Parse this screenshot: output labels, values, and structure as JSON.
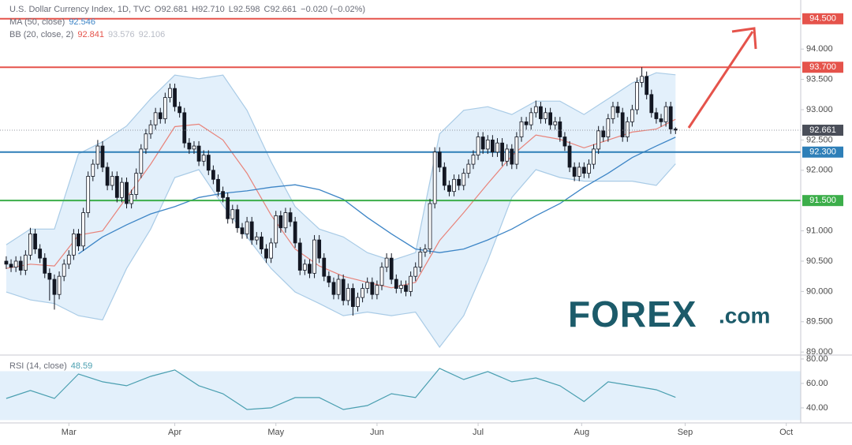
{
  "chart_data": [
    {
      "type": "candlestick",
      "title": "U.S. Dollar Currency Index, 1D, TVC",
      "ohlc_labels": [
        "O",
        "H",
        "L",
        "C"
      ],
      "last_labels": [
        "92.681",
        "92.710",
        "92.598",
        "92.661"
      ],
      "change": "−0.020 (−0.02%)",
      "up_color": "#ffffff",
      "down_color": "#131722",
      "ohlc": [
        [
          90.5,
          90.58,
          90.37,
          90.45
        ],
        [
          90.45,
          90.53,
          90.32,
          90.4
        ],
        [
          90.4,
          90.58,
          90.32,
          90.5
        ],
        [
          90.5,
          90.58,
          90.27,
          90.35
        ],
        [
          90.35,
          90.68,
          90.27,
          90.6
        ],
        [
          90.6,
          91.05,
          90.52,
          90.95
        ],
        [
          90.95,
          91.03,
          90.62,
          90.7
        ],
        [
          90.7,
          90.78,
          90.47,
          90.55
        ],
        [
          90.55,
          90.63,
          90.22,
          90.3
        ],
        [
          90.3,
          90.38,
          89.85,
          90.2
        ],
        [
          90.2,
          90.28,
          89.7,
          89.95
        ],
        [
          89.95,
          90.33,
          89.87,
          90.25
        ],
        [
          90.25,
          90.53,
          90.17,
          90.45
        ],
        [
          90.45,
          90.68,
          90.37,
          90.6
        ],
        [
          90.6,
          91.03,
          90.52,
          90.95
        ],
        [
          90.95,
          91.03,
          90.67,
          90.75
        ],
        [
          90.75,
          91.38,
          90.67,
          91.3
        ],
        [
          91.3,
          91.98,
          91.22,
          91.9
        ],
        [
          91.9,
          92.18,
          91.82,
          92.1
        ],
        [
          92.1,
          92.5,
          92.02,
          92.4
        ],
        [
          92.4,
          92.48,
          91.97,
          92.05
        ],
        [
          92.05,
          92.13,
          91.67,
          91.75
        ],
        [
          91.75,
          91.98,
          91.67,
          91.9
        ],
        [
          91.9,
          91.98,
          91.47,
          91.55
        ],
        [
          91.55,
          91.88,
          91.47,
          91.8
        ],
        [
          91.8,
          91.88,
          91.37,
          91.45
        ],
        [
          91.45,
          91.68,
          91.37,
          91.6
        ],
        [
          91.6,
          92.03,
          91.52,
          91.95
        ],
        [
          91.95,
          92.43,
          91.87,
          92.35
        ],
        [
          92.35,
          92.68,
          92.27,
          92.6
        ],
        [
          92.6,
          92.83,
          92.52,
          92.75
        ],
        [
          92.75,
          93.03,
          92.67,
          92.95
        ],
        [
          92.95,
          93.03,
          92.77,
          92.85
        ],
        [
          92.85,
          93.28,
          92.77,
          93.2
        ],
        [
          93.2,
          93.43,
          93.12,
          93.35
        ],
        [
          93.35,
          93.43,
          92.97,
          93.05
        ],
        [
          93.05,
          93.13,
          92.87,
          92.95
        ],
        [
          92.95,
          93.03,
          92.37,
          92.45
        ],
        [
          92.45,
          92.53,
          92.27,
          92.35
        ],
        [
          92.35,
          92.48,
          92.27,
          92.4
        ],
        [
          92.4,
          92.48,
          92.07,
          92.15
        ],
        [
          92.15,
          92.33,
          92.07,
          92.25
        ],
        [
          92.25,
          92.33,
          91.92,
          92.0
        ],
        [
          92.0,
          92.08,
          91.77,
          91.85
        ],
        [
          91.85,
          91.93,
          91.57,
          91.65
        ],
        [
          91.65,
          91.73,
          91.47,
          91.55
        ],
        [
          91.55,
          91.63,
          91.12,
          91.2
        ],
        [
          91.2,
          91.43,
          91.12,
          91.35
        ],
        [
          91.35,
          91.43,
          90.97,
          91.05
        ],
        [
          91.05,
          91.13,
          90.87,
          90.95
        ],
        [
          90.95,
          91.23,
          90.87,
          91.15
        ],
        [
          91.15,
          91.23,
          90.77,
          90.85
        ],
        [
          90.85,
          90.98,
          90.77,
          90.9
        ],
        [
          90.9,
          90.98,
          90.62,
          90.7
        ],
        [
          90.7,
          90.78,
          90.47,
          90.55
        ],
        [
          90.55,
          90.88,
          90.47,
          90.8
        ],
        [
          90.8,
          91.33,
          90.72,
          91.25
        ],
        [
          91.25,
          91.33,
          90.97,
          91.05
        ],
        [
          91.05,
          91.38,
          90.97,
          91.3
        ],
        [
          91.3,
          91.38,
          91.07,
          91.15
        ],
        [
          91.15,
          91.23,
          90.72,
          90.8
        ],
        [
          90.8,
          90.88,
          90.27,
          90.35
        ],
        [
          90.35,
          90.53,
          90.27,
          90.45
        ],
        [
          90.45,
          90.53,
          90.22,
          90.3
        ],
        [
          90.3,
          90.93,
          90.22,
          90.85
        ],
        [
          90.85,
          90.93,
          90.47,
          90.55
        ],
        [
          90.55,
          90.63,
          90.17,
          90.25
        ],
        [
          90.25,
          90.33,
          90.07,
          90.15
        ],
        [
          90.15,
          90.23,
          89.87,
          89.95
        ],
        [
          89.95,
          90.28,
          89.87,
          90.2
        ],
        [
          90.2,
          90.28,
          89.77,
          89.85
        ],
        [
          89.85,
          90.13,
          89.77,
          90.05
        ],
        [
          90.05,
          90.13,
          89.6,
          89.75
        ],
        [
          89.75,
          89.98,
          89.67,
          89.9
        ],
        [
          89.9,
          90.13,
          89.82,
          90.05
        ],
        [
          90.05,
          90.23,
          89.97,
          90.15
        ],
        [
          90.15,
          90.23,
          89.87,
          89.95
        ],
        [
          89.95,
          90.18,
          89.87,
          90.1
        ],
        [
          90.1,
          90.48,
          90.02,
          90.4
        ],
        [
          90.4,
          90.63,
          90.32,
          90.55
        ],
        [
          90.55,
          90.63,
          90.12,
          90.2
        ],
        [
          90.2,
          90.28,
          89.97,
          90.05
        ],
        [
          90.05,
          90.18,
          89.97,
          90.1
        ],
        [
          90.1,
          90.18,
          89.92,
          90.0
        ],
        [
          90.0,
          90.33,
          89.92,
          90.25
        ],
        [
          90.25,
          90.48,
          90.17,
          90.4
        ],
        [
          90.4,
          90.73,
          90.32,
          90.65
        ],
        [
          90.65,
          90.78,
          90.57,
          90.7
        ],
        [
          90.7,
          91.53,
          90.62,
          91.45
        ],
        [
          91.45,
          92.38,
          91.37,
          92.3
        ],
        [
          92.3,
          92.38,
          91.97,
          92.05
        ],
        [
          92.05,
          92.13,
          91.67,
          91.75
        ],
        [
          91.75,
          91.83,
          91.57,
          91.65
        ],
        [
          91.65,
          91.93,
          91.57,
          91.85
        ],
        [
          91.85,
          91.93,
          91.67,
          91.75
        ],
        [
          91.75,
          92.03,
          91.67,
          91.95
        ],
        [
          91.95,
          92.18,
          91.87,
          92.1
        ],
        [
          92.1,
          92.33,
          92.02,
          92.25
        ],
        [
          92.25,
          92.63,
          92.17,
          92.55
        ],
        [
          92.55,
          92.63,
          92.27,
          92.35
        ],
        [
          92.35,
          92.58,
          92.27,
          92.5
        ],
        [
          92.5,
          92.58,
          92.22,
          92.3
        ],
        [
          92.3,
          92.53,
          92.22,
          92.45
        ],
        [
          92.45,
          92.53,
          92.07,
          92.15
        ],
        [
          92.15,
          92.43,
          92.07,
          92.35
        ],
        [
          92.35,
          92.43,
          92.02,
          92.1
        ],
        [
          92.1,
          92.63,
          92.02,
          92.55
        ],
        [
          92.55,
          92.88,
          92.47,
          92.8
        ],
        [
          92.8,
          92.88,
          92.67,
          92.75
        ],
        [
          92.75,
          93.03,
          92.67,
          92.95
        ],
        [
          92.95,
          93.15,
          92.87,
          93.05
        ],
        [
          93.05,
          93.13,
          92.77,
          92.85
        ],
        [
          92.85,
          93.03,
          92.77,
          92.95
        ],
        [
          92.95,
          93.03,
          92.67,
          92.75
        ],
        [
          92.75,
          92.88,
          92.67,
          92.8
        ],
        [
          92.8,
          92.88,
          92.47,
          92.55
        ],
        [
          92.55,
          92.63,
          92.32,
          92.4
        ],
        [
          92.4,
          92.48,
          91.97,
          92.05
        ],
        [
          92.05,
          92.13,
          91.82,
          91.9
        ],
        [
          91.9,
          92.13,
          91.82,
          92.05
        ],
        [
          92.05,
          92.13,
          91.87,
          91.95
        ],
        [
          91.95,
          92.18,
          91.87,
          92.1
        ],
        [
          92.1,
          92.43,
          92.02,
          92.35
        ],
        [
          92.35,
          92.73,
          92.27,
          92.65
        ],
        [
          92.65,
          92.73,
          92.47,
          92.55
        ],
        [
          92.55,
          92.93,
          92.47,
          92.85
        ],
        [
          92.85,
          93.13,
          92.77,
          93.05
        ],
        [
          93.05,
          93.13,
          92.87,
          92.95
        ],
        [
          92.95,
          93.03,
          92.47,
          92.55
        ],
        [
          92.55,
          92.88,
          92.47,
          92.8
        ],
        [
          92.8,
          93.08,
          92.72,
          93.0
        ],
        [
          93.0,
          93.53,
          92.92,
          93.45
        ],
        [
          93.45,
          93.7,
          93.37,
          93.55
        ],
        [
          93.55,
          93.63,
          93.17,
          93.25
        ],
        [
          93.25,
          93.33,
          92.87,
          92.95
        ],
        [
          92.95,
          93.03,
          92.77,
          92.85
        ],
        [
          92.85,
          92.93,
          92.72,
          92.8
        ],
        [
          92.8,
          93.13,
          92.72,
          93.05
        ],
        [
          93.05,
          93.13,
          92.6,
          92.681
        ],
        [
          92.681,
          92.71,
          92.598,
          92.661
        ]
      ],
      "xlim": [
        -1.3,
        165
      ],
      "xticks": [
        {
          "value": 13,
          "label": "Mar"
        },
        {
          "value": 35,
          "label": "Apr"
        },
        {
          "value": 56,
          "label": "May"
        },
        {
          "value": 77,
          "label": "Jun"
        },
        {
          "value": 98,
          "label": "Jul"
        },
        {
          "value": 119.5,
          "label": "Aug"
        },
        {
          "value": 141,
          "label": "Sep"
        },
        {
          "value": 162,
          "label": "Oct"
        }
      ],
      "ylim": [
        88.95,
        94.81
      ],
      "yticks": [
        {
          "value": 89,
          "label": "89.000"
        },
        {
          "value": 89.5,
          "label": "89.500"
        },
        {
          "value": 90,
          "label": "90.000"
        },
        {
          "value": 90.5,
          "label": "90.500"
        },
        {
          "value": 91,
          "label": "91.000"
        },
        {
          "value": 92,
          "label": "92.000"
        },
        {
          "value": 92.5,
          "label": "92.500"
        },
        {
          "value": 93,
          "label": "93.000"
        },
        {
          "value": 93.5,
          "label": "93.500"
        },
        {
          "value": 94,
          "label": "94.000"
        }
      ],
      "levels": [
        {
          "value": 94.5,
          "label": "94.500",
          "color": "#e5534b"
        },
        {
          "value": 93.7,
          "label": "93.700",
          "color": "#e5534b"
        },
        {
          "value": 92.3,
          "label": "92.300",
          "color": "#2e7fb8"
        },
        {
          "value": 91.5,
          "label": "91.500",
          "color": "#3cae4a"
        }
      ],
      "indicators": {
        "x": [
          0,
          5,
          10,
          15,
          20,
          25,
          30,
          35,
          40,
          45,
          50,
          55,
          60,
          65,
          70,
          75,
          80,
          85,
          90,
          95,
          100,
          105,
          110,
          115,
          120,
          125,
          130,
          135,
          139
        ],
        "ma": {
          "name": "MA (50, close)",
          "color": "#3d85c6",
          "values": [
            null,
            null,
            null,
            90.62,
            90.9,
            91.1,
            91.28,
            91.4,
            91.55,
            91.62,
            91.66,
            91.72,
            91.76,
            91.68,
            91.52,
            91.22,
            90.95,
            90.7,
            90.64,
            90.7,
            90.85,
            91.03,
            91.25,
            91.45,
            91.72,
            91.95,
            92.21,
            92.4,
            92.546
          ]
        },
        "bb": {
          "name": "BB (20, close, 2)",
          "fill": "#e3f0fb",
          "lines": [
            {
              "color": "#e8837a",
              "values": [
                90.38,
                90.45,
                90.42,
                90.93,
                91.0,
                91.55,
                92.1,
                92.72,
                92.76,
                92.5,
                91.95,
                91.26,
                90.7,
                90.42,
                90.25,
                90.15,
                90.06,
                90.15,
                90.84,
                91.3,
                91.78,
                92.24,
                92.58,
                92.51,
                92.37,
                92.5,
                92.63,
                92.68,
                92.841
              ]
            },
            {
              "color": "#a9cbe6",
              "values": [
                90.77,
                91.03,
                91.03,
                92.27,
                92.47,
                92.73,
                93.18,
                93.57,
                93.51,
                93.57,
                92.99,
                92.14,
                91.4,
                91.03,
                90.9,
                90.64,
                90.51,
                90.64,
                92.6,
                92.99,
                93.05,
                92.92,
                93.14,
                93.14,
                92.92,
                93.18,
                93.44,
                93.61,
                93.576
              ]
            },
            {
              "color": "#a9cbe6",
              "values": [
                89.99,
                89.86,
                89.8,
                89.6,
                89.53,
                90.38,
                91.03,
                91.88,
                92.01,
                91.42,
                90.9,
                90.38,
                89.99,
                89.8,
                89.6,
                89.66,
                89.6,
                89.66,
                89.08,
                89.6,
                90.51,
                91.55,
                92.01,
                91.88,
                91.82,
                91.82,
                91.82,
                91.75,
                92.106
              ]
            }
          ]
        }
      },
      "watermark": {
        "brand": "FOREX",
        "suffix": ".com"
      }
    },
    {
      "type": "line",
      "title": "RSI (14, close)",
      "color": "#4a9fb0",
      "x": [
        0,
        5,
        10,
        15,
        20,
        25,
        30,
        35,
        40,
        45,
        50,
        55,
        60,
        65,
        70,
        75,
        80,
        85,
        90,
        95,
        100,
        105,
        110,
        115,
        120,
        125,
        130,
        135,
        139
      ],
      "values": [
        47.7,
        54.2,
        47.7,
        67.7,
        61.3,
        58.1,
        65.8,
        71.0,
        58.1,
        51.6,
        38.7,
        40.0,
        48.4,
        48.4,
        38.7,
        41.9,
        51.6,
        48.4,
        72.3,
        63.2,
        69.7,
        61.3,
        64.5,
        58.1,
        45.2,
        61.3,
        58.1,
        54.8,
        48.59
      ],
      "xlim": [
        -1.3,
        165
      ],
      "ylim": [
        27.7,
        83.2
      ],
      "yticks": [
        {
          "value": 40,
          "label": "40.00"
        },
        {
          "value": 60,
          "label": "60.00"
        },
        {
          "value": 80,
          "label": "80.00"
        }
      ],
      "band": [
        30,
        70
      ]
    }
  ]
}
